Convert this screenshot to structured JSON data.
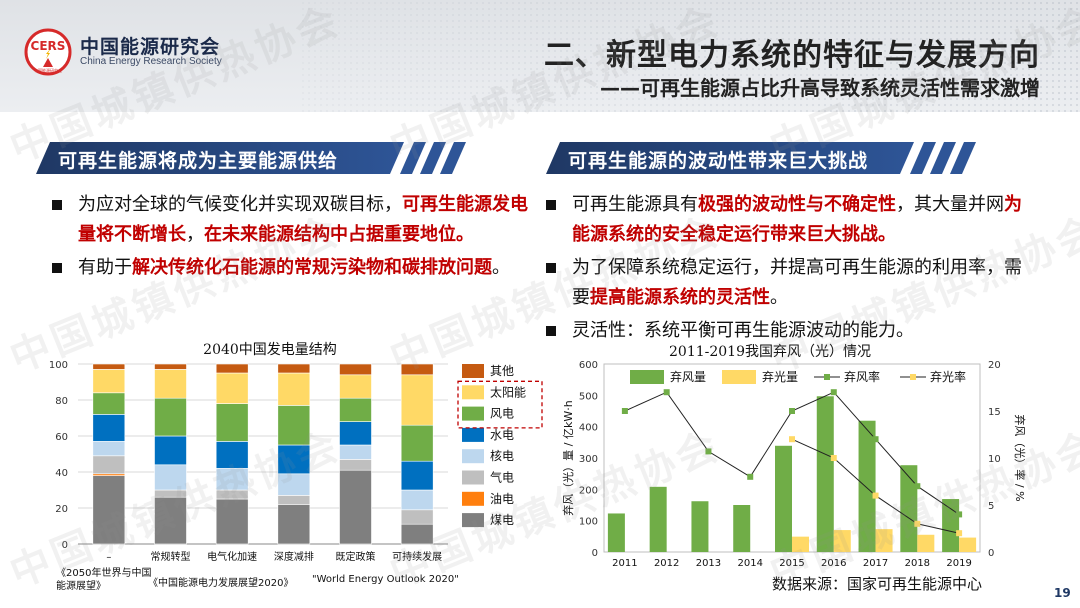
{
  "org": {
    "logo_text": "CERS",
    "logo_small": "中国能源研究会",
    "name_cn": "中国能源研究会",
    "name_en": "China Energy Research Society"
  },
  "title": {
    "main": "二、新型电力系统的特征与发展方向",
    "sub": "——可再生能源占比升高导致系统灵活性需求激增"
  },
  "colors": {
    "dark_blue": "#1f3864",
    "mid_blue": "#2e5597",
    "accent_red": "#c00000"
  },
  "left": {
    "banner": "可再生能源将成为主要能源供给",
    "bullets": [
      {
        "segments": [
          {
            "t": "为应对全球的气候变化并实现双碳目标，",
            "red": false
          },
          {
            "t": "可再生能源发电量将不断增长",
            "red": true
          },
          {
            "t": "，",
            "red": false
          },
          {
            "t": "在未来能源结构中占据重要地位。",
            "red": true
          }
        ]
      },
      {
        "segments": [
          {
            "t": "有助于",
            "red": false
          },
          {
            "t": "解决传统化石能源的常规污染物和碳排放问题",
            "red": true
          },
          {
            "t": "。",
            "red": false
          }
        ]
      }
    ]
  },
  "right": {
    "banner": "可再生能源的波动性带来巨大挑战",
    "bullets": [
      {
        "segments": [
          {
            "t": "可再生能源具有",
            "red": false
          },
          {
            "t": "极强的波动性与不确定性",
            "red": true
          },
          {
            "t": "，其大量并网",
            "red": false
          },
          {
            "t": "为能源系统的安全稳定运行带来巨大挑战。",
            "red": true
          }
        ]
      },
      {
        "segments": [
          {
            "t": "为了保障系统稳定运行，并提高可再生能源的利用率，需要",
            "red": false
          },
          {
            "t": "提高能源系统的灵活性",
            "red": true
          },
          {
            "t": "。",
            "red": false
          }
        ]
      },
      {
        "segments": [
          {
            "t": "灵活性：系统平衡可再生能源波动的能力。",
            "red": false
          }
        ]
      }
    ]
  },
  "chart_data": [
    {
      "type": "bar",
      "stacked": true,
      "title": "2040中国发电量结构",
      "categories": [
        "–",
        "常规转型",
        "电气化加速",
        "深度减排",
        "既定政策",
        "可持续发展"
      ],
      "ylim": [
        0,
        100
      ],
      "yticks": [
        0,
        20,
        40,
        60,
        80,
        100
      ],
      "grid": true,
      "legend_position": "right",
      "series": [
        {
          "name": "煤电",
          "color": "#7f7f7f",
          "values": [
            38,
            26,
            25,
            22,
            41,
            11
          ]
        },
        {
          "name": "油电",
          "color": "#ff7f0e",
          "values": [
            1,
            0,
            0,
            0,
            0,
            0
          ]
        },
        {
          "name": "气电",
          "color": "#bfbfbf",
          "values": [
            10,
            4,
            5,
            5,
            6,
            8
          ]
        },
        {
          "name": "核电",
          "color": "#bdd7ee",
          "values": [
            8,
            14,
            12,
            12,
            8,
            11
          ]
        },
        {
          "name": "水电",
          "color": "#0070c0",
          "values": [
            15,
            16,
            15,
            16,
            13,
            16
          ]
        },
        {
          "name": "风电",
          "color": "#70ad47",
          "values": [
            12,
            21,
            21,
            22,
            13,
            20
          ]
        },
        {
          "name": "太阳能",
          "color": "#ffd966",
          "values": [
            13,
            16,
            17,
            18,
            13,
            28
          ]
        },
        {
          "name": "其他",
          "color": "#c55a11",
          "values": [
            3,
            3,
            5,
            5,
            6,
            6
          ]
        }
      ],
      "source_notes": [
        "《2050年世界与中国能源展望》",
        "《中国能源电力发展展望2020》",
        "\"World Energy Outlook 2020\""
      ]
    },
    {
      "type": "bar+line",
      "title": "2011-2019我国弃风（光）情况",
      "x": [
        "2011",
        "2012",
        "2013",
        "2014",
        "2015",
        "2016",
        "2017",
        "2018",
        "2019"
      ],
      "ylabel_left": "弃风（光）量 / 亿kW·h",
      "ylabel_right": "弃风（光）率 / %",
      "ylim_left": [
        0,
        600
      ],
      "yticks_left": [
        0,
        100,
        200,
        300,
        400,
        500,
        600
      ],
      "ylim_right": [
        0,
        20
      ],
      "yticks_right": [
        0,
        5,
        10,
        15,
        20
      ],
      "legend_position": "top",
      "bars": [
        {
          "name": "弃风量",
          "color": "#70ad47",
          "values": [
            123,
            208,
            162,
            150,
            339,
            497,
            419,
            277,
            169
          ]
        },
        {
          "name": "弃光量",
          "color": "#ffd966",
          "values": [
            null,
            null,
            null,
            null,
            49,
            70,
            73,
            55,
            46
          ]
        }
      ],
      "lines": [
        {
          "name": "弃风率",
          "color": "#70ad47",
          "values": [
            15,
            17,
            10.7,
            8,
            15,
            17,
            12,
            7,
            4
          ]
        },
        {
          "name": "弃光率",
          "color": "#ffd966",
          "values": [
            null,
            null,
            null,
            null,
            12,
            10,
            6,
            3,
            2
          ]
        }
      ]
    }
  ],
  "source": "数据来源：国家可再生能源中心",
  "page_number": "19",
  "watermark": "中国城镇供热协会"
}
